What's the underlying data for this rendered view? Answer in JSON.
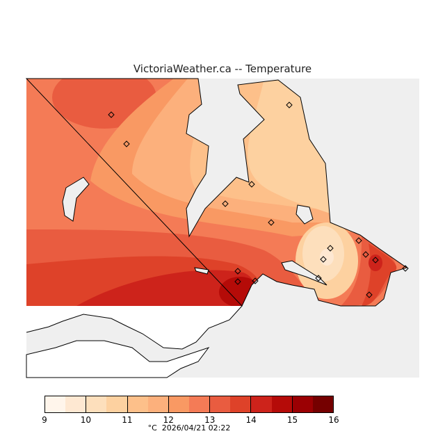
{
  "title": "VictoriaWeather.ca  --  Temperature",
  "colorbar": {
    "ticks": [
      "9",
      "10",
      "11",
      "12",
      "13",
      "14",
      "15",
      "16"
    ],
    "colors": [
      "#fff5eb",
      "#fee8d2",
      "#fddfbc",
      "#fdd1a0",
      "#fdc08a",
      "#fcb07c",
      "#f99963",
      "#f47b56",
      "#e95c40",
      "#de4229",
      "#cd231b",
      "#b50b08",
      "#9b0003",
      "#750000"
    ],
    "unit": "°C",
    "timestamp": "2026/04/21 02:22"
  },
  "colors": {
    "background_gray": "#efefef",
    "land_white": "#ffffff"
  }
}
